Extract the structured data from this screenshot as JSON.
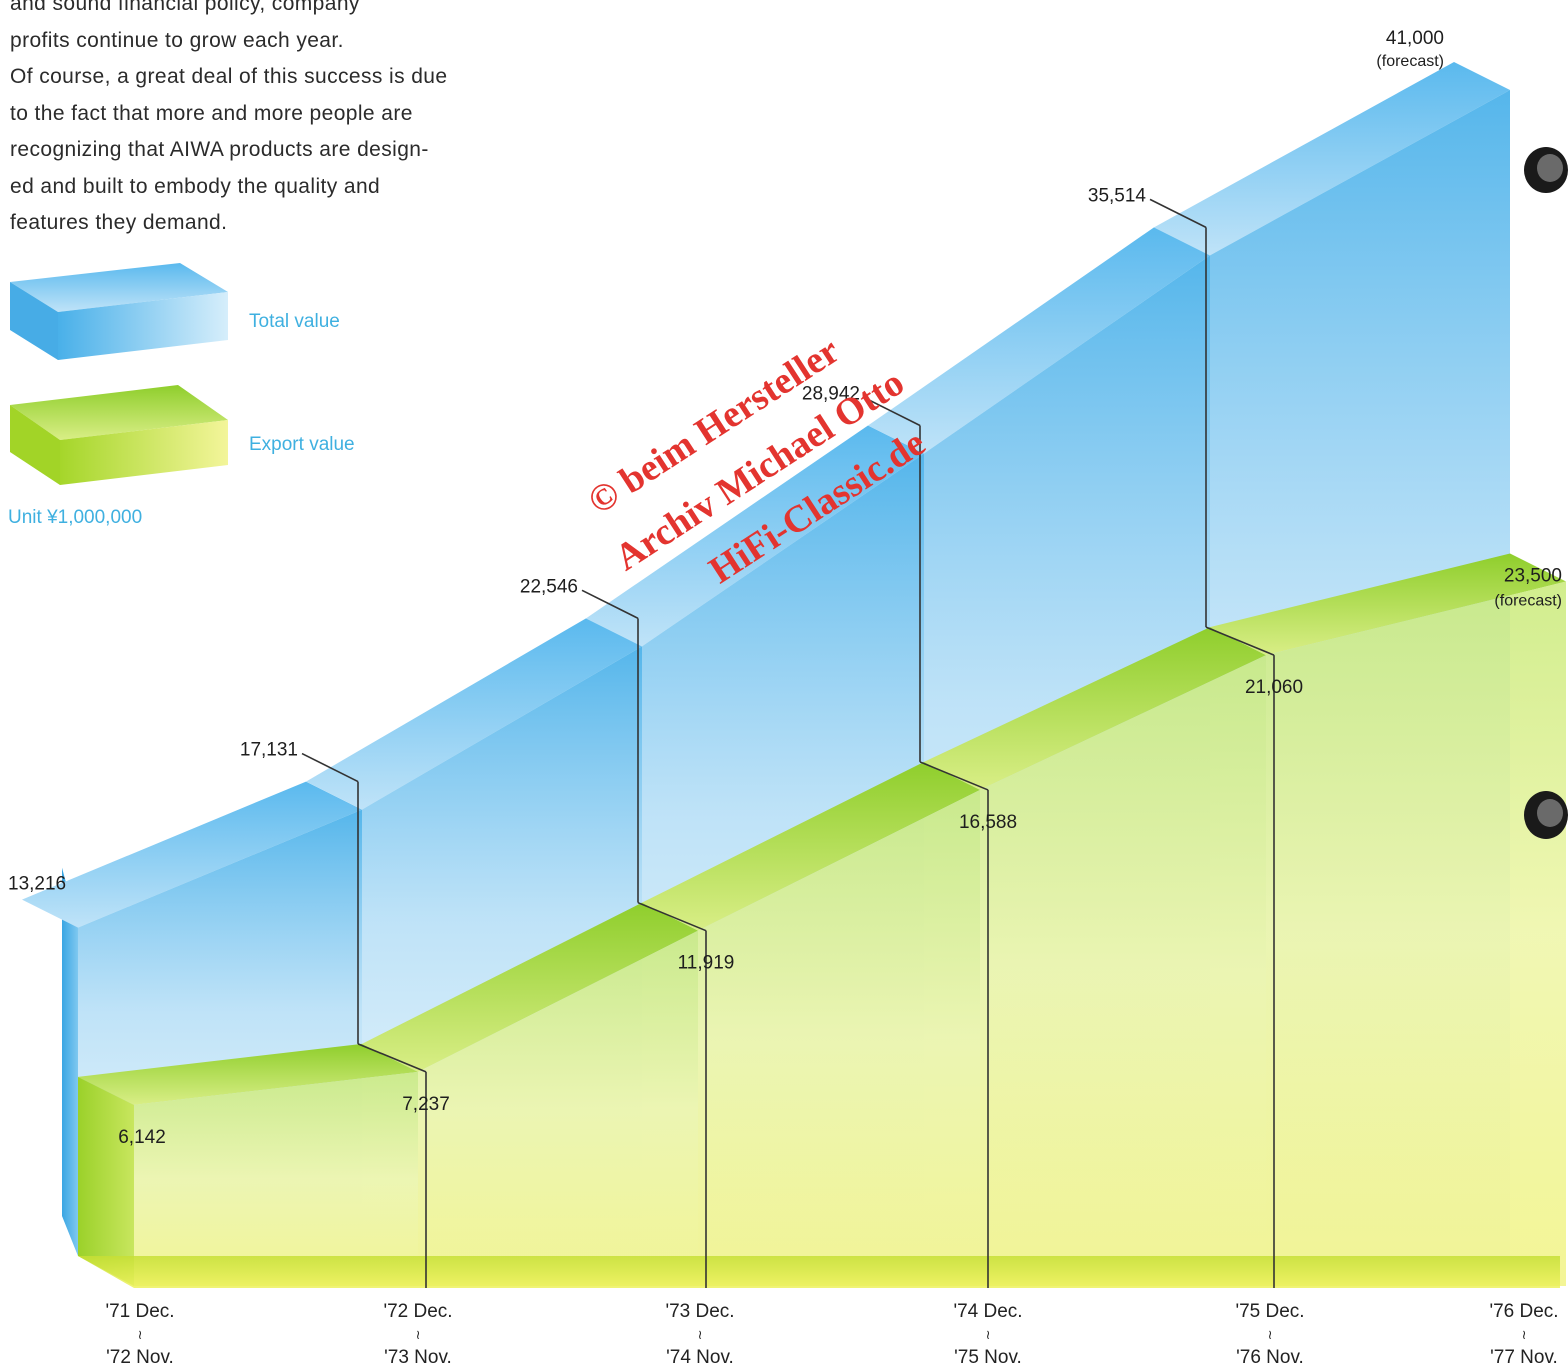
{
  "intro_lines": [
    "and sound financial policy, company",
    "profits continue to grow each year.",
    "Of course, a great deal of this success is due",
    "to the fact that more and more people are",
    "recognizing that AIWA products are design-",
    "ed and built to embody the quality and",
    "features they demand."
  ],
  "legend": {
    "total_label": "Total value",
    "export_label": "Export value",
    "unit": "Unit ¥1,000,000"
  },
  "watermark": [
    "© beim Hersteller",
    "Archiv Michael Otto",
    "HiFi-Classic.de"
  ],
  "colors": {
    "total": "#4db3e8",
    "export": "#a7d62a",
    "legend_text": "#3fb0e0",
    "watermark": "#e3342f"
  },
  "chart_data": {
    "type": "area",
    "title": "",
    "xlabel": "",
    "ylabel": "",
    "categories": [
      {
        "top": "'71 Dec.",
        "mid": "≀",
        "bottom": "'72 Nov."
      },
      {
        "top": "'72 Dec.",
        "mid": "≀",
        "bottom": "'73 Nov."
      },
      {
        "top": "'73 Dec.",
        "mid": "≀",
        "bottom": "'74 Nov."
      },
      {
        "top": "'74 Dec.",
        "mid": "≀",
        "bottom": "'75 Nov."
      },
      {
        "top": "'75 Dec.",
        "mid": "≀",
        "bottom": "'76 Nov."
      },
      {
        "top": "'76 Dec.",
        "mid": "≀",
        "bottom": "'77 Nov."
      }
    ],
    "series": [
      {
        "name": "Total value",
        "values": [
          13216,
          17131,
          22546,
          28942,
          35514,
          41000
        ],
        "labels": [
          "13,216",
          "17,131",
          "22,546",
          "28,942",
          "35,514",
          "41,000"
        ],
        "notes": [
          "",
          "",
          "",
          "",
          "",
          "(forecast)"
        ]
      },
      {
        "name": "Export value",
        "values": [
          6142,
          7237,
          11919,
          16588,
          21060,
          23500
        ],
        "labels": [
          "6,142",
          "7,237",
          "11,919",
          "16,588",
          "21,060",
          "23,500"
        ],
        "notes": [
          "",
          "",
          "",
          "",
          "",
          "(forecast)"
        ]
      }
    ],
    "ylim": [
      0,
      41000
    ],
    "legend": "top-left",
    "grid": false,
    "perspective": "3d-stepped-area"
  }
}
